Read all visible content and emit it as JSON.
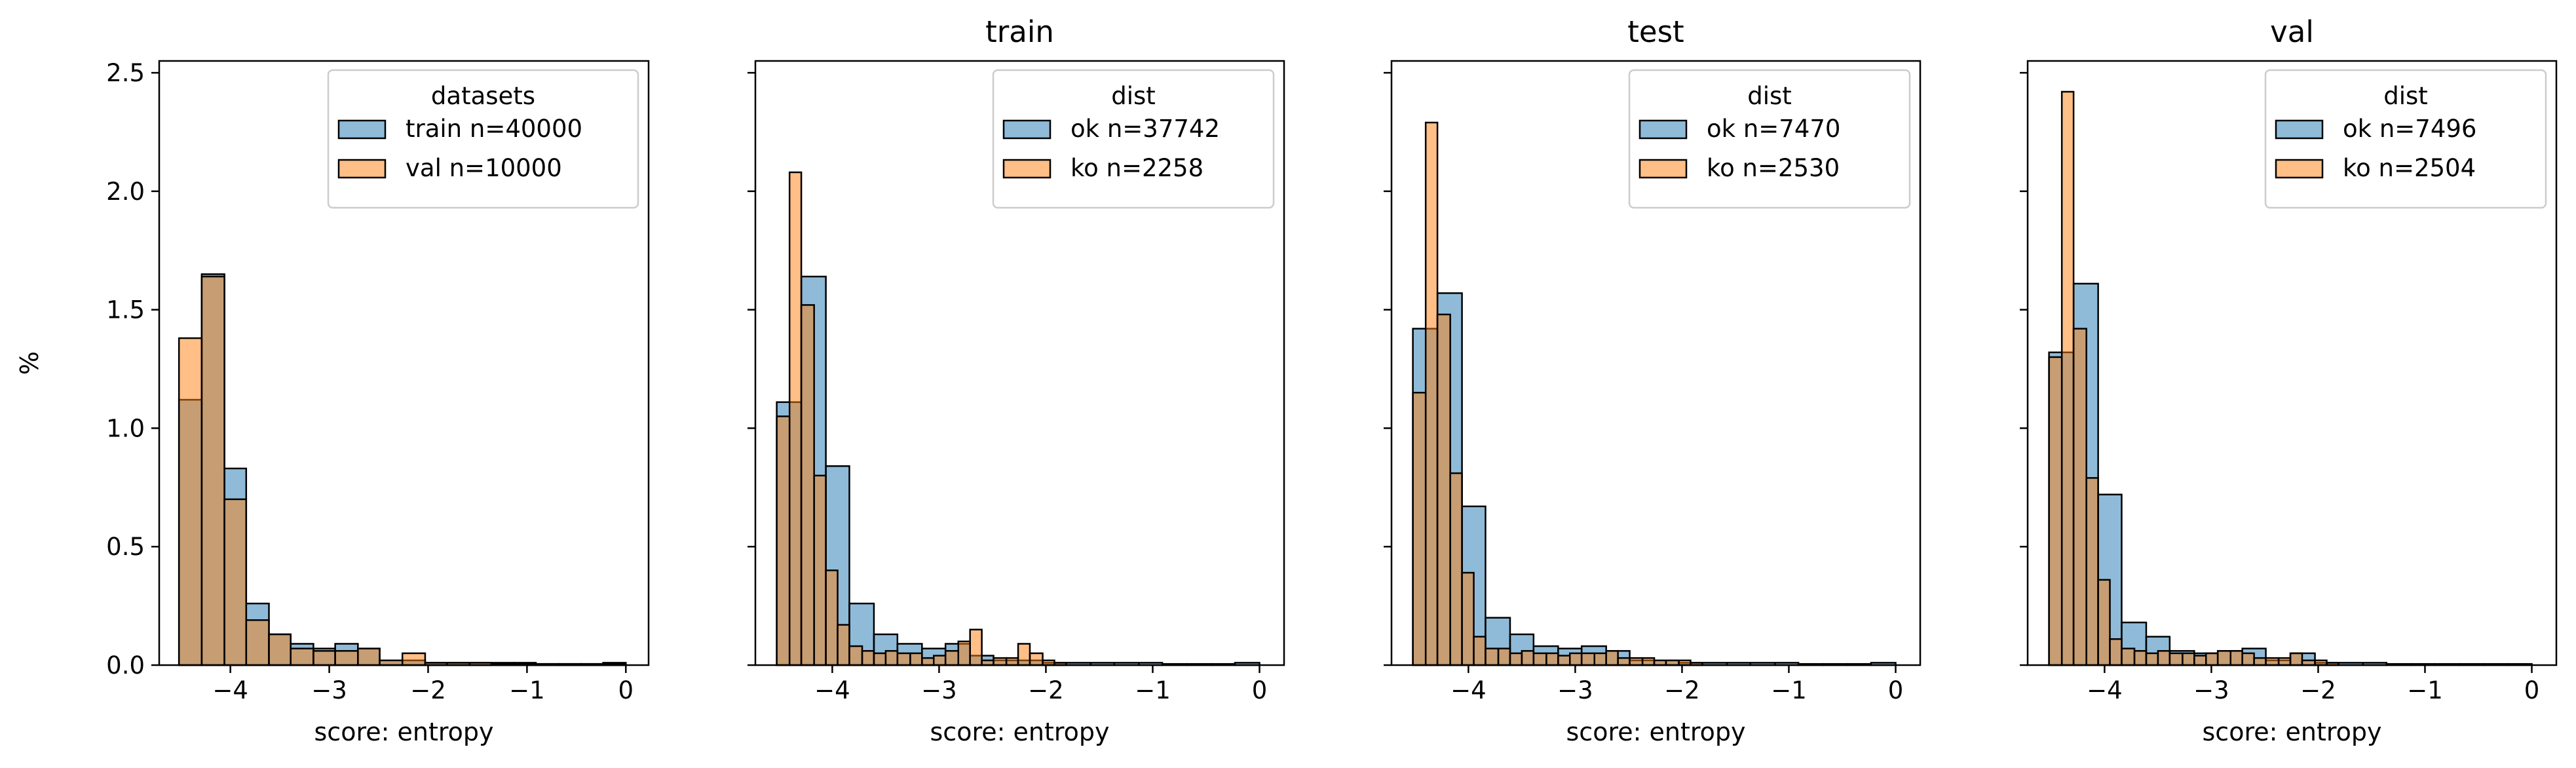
{
  "chart_data": [
    {
      "type": "bar",
      "title": "",
      "xlabel": "score: entropy",
      "ylabel": "%",
      "xlim": [
        -4.72,
        0.23
      ],
      "ylim": [
        0,
        2.55
      ],
      "xticks": [
        -4,
        -3,
        -2,
        -1,
        0
      ],
      "xtick_labels": [
        "−4",
        "−3",
        "−2",
        "−1",
        "0"
      ],
      "yticks": [
        0.0,
        0.5,
        1.0,
        1.5,
        2.0,
        2.5
      ],
      "ytick_labels": [
        "0.0",
        "0.5",
        "1.0",
        "1.5",
        "2.0",
        "2.5"
      ],
      "legend": {
        "title": "datasets",
        "position": "top-right"
      },
      "series": [
        {
          "name": "train n=40000",
          "color": "#1f77b4",
          "bin_edges": [
            -4.52,
            -4.29,
            -4.06,
            -3.84,
            -3.61,
            -3.39,
            -3.16,
            -2.94,
            -2.71,
            -2.49,
            -2.26,
            -2.03,
            -1.81,
            -1.58,
            -1.36,
            -1.13,
            -0.91,
            -0.68,
            -0.45,
            -0.23,
            0.0
          ],
          "values": [
            1.12,
            1.65,
            0.83,
            0.26,
            0.13,
            0.09,
            0.07,
            0.09,
            0.07,
            0.02,
            0.02,
            0.01,
            0.01,
            0.01,
            0.01,
            0.01,
            0.005,
            0.005,
            0.005,
            0.01
          ]
        },
        {
          "name": "val n=10000",
          "color": "#ff7f0e",
          "bin_edges": [
            -4.52,
            -4.29,
            -4.06,
            -3.84,
            -3.61,
            -3.39,
            -3.16,
            -2.94,
            -2.71,
            -2.49,
            -2.26,
            -2.03,
            -1.81,
            -1.58,
            -1.36,
            -1.13,
            -0.91,
            -0.68,
            -0.45,
            -0.23,
            0.0
          ],
          "values": [
            1.38,
            1.64,
            0.7,
            0.19,
            0.13,
            0.07,
            0.06,
            0.06,
            0.07,
            0.02,
            0.05,
            0.01,
            0.01,
            0.01,
            0.005,
            0.005,
            0.005,
            0.005,
            0.005,
            0.005
          ]
        }
      ]
    },
    {
      "type": "bar",
      "title": "train",
      "xlabel": "score: entropy",
      "ylabel": "",
      "xlim": [
        -4.72,
        0.23
      ],
      "ylim": [
        0,
        2.55
      ],
      "xticks": [
        -4,
        -3,
        -2,
        -1,
        0
      ],
      "xtick_labels": [
        "−4",
        "−3",
        "−2",
        "−1",
        "0"
      ],
      "legend": {
        "title": "dist",
        "position": "top-right"
      },
      "series": [
        {
          "name": "ok n=37742",
          "color": "#1f77b4",
          "bin_edges": [
            -4.52,
            -4.29,
            -4.06,
            -3.84,
            -3.61,
            -3.39,
            -3.16,
            -2.94,
            -2.71,
            -2.49,
            -2.26,
            -2.03,
            -1.81,
            -1.58,
            -1.36,
            -1.13,
            -0.91,
            -0.68,
            -0.45,
            -0.23,
            0.0
          ],
          "values": [
            1.11,
            1.64,
            0.84,
            0.26,
            0.13,
            0.09,
            0.07,
            0.09,
            0.04,
            0.02,
            0.02,
            0.01,
            0.01,
            0.01,
            0.01,
            0.01,
            0.005,
            0.005,
            0.005,
            0.01
          ]
        },
        {
          "name": "ko n=2258",
          "color": "#ff7f0e",
          "bin_edges": [
            -4.52,
            -4.4,
            -4.29,
            -4.17,
            -4.06,
            -3.95,
            -3.84,
            -3.72,
            -3.61,
            -3.5,
            -3.39,
            -3.27,
            -3.16,
            -3.05,
            -2.94,
            -2.82,
            -2.71,
            -2.6,
            -2.49,
            -2.37,
            -2.26,
            -2.15,
            -2.03,
            -1.92,
            -1.81
          ],
          "values": [
            1.05,
            2.08,
            1.52,
            0.8,
            0.4,
            0.17,
            0.08,
            0.06,
            0.05,
            0.06,
            0.05,
            0.05,
            0.03,
            0.04,
            0.06,
            0.1,
            0.15,
            0.02,
            0.03,
            0.03,
            0.09,
            0.05,
            0.02,
            0.01
          ]
        }
      ]
    },
    {
      "type": "bar",
      "title": "test",
      "xlabel": "score: entropy",
      "ylabel": "",
      "xlim": [
        -4.72,
        0.23
      ],
      "ylim": [
        0,
        2.55
      ],
      "xticks": [
        -4,
        -3,
        -2,
        -1,
        0
      ],
      "xtick_labels": [
        "−4",
        "−3",
        "−2",
        "−1",
        "0"
      ],
      "legend": {
        "title": "dist",
        "position": "top-right"
      },
      "series": [
        {
          "name": "ok n=7470",
          "color": "#1f77b4",
          "bin_edges": [
            -4.52,
            -4.29,
            -4.06,
            -3.84,
            -3.61,
            -3.39,
            -3.16,
            -2.94,
            -2.71,
            -2.49,
            -2.26,
            -2.03,
            -1.81,
            -1.58,
            -1.36,
            -1.13,
            -0.91,
            -0.68,
            -0.45,
            -0.23,
            0.0
          ],
          "values": [
            1.42,
            1.57,
            0.67,
            0.2,
            0.13,
            0.08,
            0.07,
            0.08,
            0.06,
            0.02,
            0.02,
            0.01,
            0.01,
            0.01,
            0.01,
            0.01,
            0.005,
            0.005,
            0.005,
            0.01
          ]
        },
        {
          "name": "ko n=2530",
          "color": "#ff7f0e",
          "bin_edges": [
            -4.52,
            -4.4,
            -4.29,
            -4.17,
            -4.06,
            -3.95,
            -3.84,
            -3.72,
            -3.61,
            -3.5,
            -3.39,
            -3.27,
            -3.16,
            -3.05,
            -2.94,
            -2.82,
            -2.71,
            -2.6,
            -2.49,
            -2.37,
            -2.26,
            -2.15,
            -2.03,
            -1.92,
            -1.81
          ],
          "values": [
            1.15,
            2.29,
            1.48,
            0.81,
            0.39,
            0.12,
            0.07,
            0.07,
            0.05,
            0.06,
            0.05,
            0.05,
            0.04,
            0.05,
            0.05,
            0.05,
            0.06,
            0.03,
            0.03,
            0.03,
            0.02,
            0.02,
            0.02,
            0.01
          ]
        }
      ]
    },
    {
      "type": "bar",
      "title": "val",
      "xlabel": "score: entropy",
      "ylabel": "",
      "xlim": [
        -4.72,
        0.23
      ],
      "ylim": [
        0,
        2.55
      ],
      "xticks": [
        -4,
        -3,
        -2,
        -1,
        0
      ],
      "xtick_labels": [
        "−4",
        "−3",
        "−2",
        "−1",
        "0"
      ],
      "legend": {
        "title": "dist",
        "position": "top-right"
      },
      "series": [
        {
          "name": "ok n=7496",
          "color": "#1f77b4",
          "bin_edges": [
            -4.52,
            -4.29,
            -4.06,
            -3.84,
            -3.61,
            -3.39,
            -3.16,
            -2.94,
            -2.71,
            -2.49,
            -2.26,
            -2.03,
            -1.81,
            -1.58,
            -1.36,
            -1.13,
            -0.91,
            -0.68,
            -0.45,
            -0.23,
            0.0
          ],
          "values": [
            1.32,
            1.61,
            0.72,
            0.18,
            0.12,
            0.06,
            0.05,
            0.06,
            0.07,
            0.02,
            0.05,
            0.01,
            0.01,
            0.01,
            0.005,
            0.005,
            0.005,
            0.005,
            0.005,
            0.005
          ]
        },
        {
          "name": "ko n=2504",
          "color": "#ff7f0e",
          "bin_edges": [
            -4.52,
            -4.4,
            -4.29,
            -4.17,
            -4.06,
            -3.95,
            -3.84,
            -3.72,
            -3.61,
            -3.5,
            -3.39,
            -3.27,
            -3.16,
            -3.05,
            -2.94,
            -2.82,
            -2.71,
            -2.6,
            -2.49,
            -2.37,
            -2.26,
            -2.15,
            -2.03,
            -1.92,
            -1.81
          ],
          "values": [
            1.3,
            2.42,
            1.42,
            0.79,
            0.36,
            0.11,
            0.07,
            0.06,
            0.05,
            0.06,
            0.05,
            0.05,
            0.04,
            0.05,
            0.06,
            0.06,
            0.05,
            0.03,
            0.03,
            0.03,
            0.05,
            0.02,
            0.02,
            0.01
          ]
        }
      ]
    }
  ]
}
